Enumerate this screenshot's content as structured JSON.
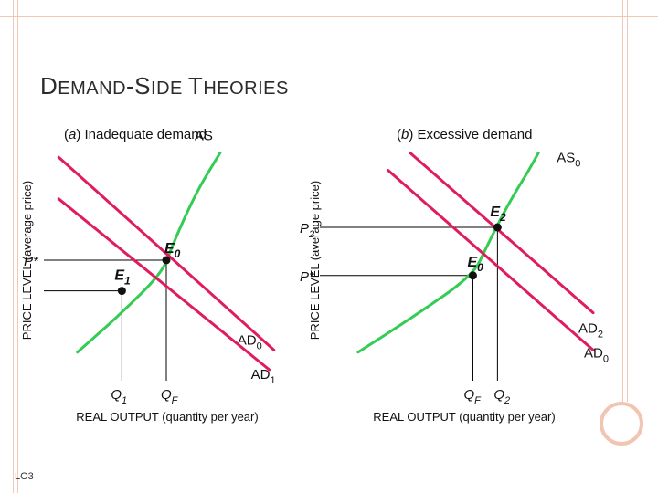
{
  "slide": {
    "title_parts": [
      "D",
      "EMAND",
      "-S",
      "IDE ",
      "T",
      "HEORIES"
    ],
    "footer": "LO3"
  },
  "colors": {
    "supply_curve": "#33cc55",
    "demand_curve": "#e01b5e",
    "guide_lines": "#000000",
    "frame": "#f4c7b4"
  },
  "chart_data": [
    {
      "type": "line",
      "panel_label": "(a)",
      "title": "Inadequate demand",
      "xlabel": "REAL OUTPUT (quantity per year)",
      "ylabel": "PRICE LEVEL (average price)",
      "xlim": [
        0,
        10
      ],
      "ylim": [
        0,
        10
      ],
      "series": [
        {
          "name": "AS",
          "label_main": "AS",
          "label_sub": "",
          "x": [
            1.2,
            3.0,
            4.8,
            5.2,
            5.8,
            6.4,
            6.9,
            7.3
          ],
          "y": [
            0.8,
            2.5,
            4.4,
            5.5,
            7.0,
            8.3,
            9.2,
            9.9
          ]
        },
        {
          "name": "AD0",
          "label_main": "AD",
          "label_sub": "0",
          "x": [
            0.4,
            9.6
          ],
          "y": [
            9.7,
            0.9
          ]
        },
        {
          "name": "AD1",
          "label_main": "AD",
          "label_sub": "1",
          "x": [
            0.4,
            9.4
          ],
          "y": [
            7.8,
            0.0
          ]
        }
      ],
      "points": [
        {
          "name": "E0",
          "label_main": "E",
          "label_sub": "0",
          "x": 5.0,
          "y": 5.0
        },
        {
          "name": "E1",
          "label_main": "E",
          "label_sub": "1",
          "x": 3.1,
          "y": 3.6
        }
      ],
      "y_markers": [
        {
          "label": "P*",
          "value": 5.0
        }
      ],
      "x_markers": [
        {
          "label_main": "Q",
          "label_sub": "1",
          "value": 3.1
        },
        {
          "label_main": "Q",
          "label_sub": "F",
          "value": 5.0
        }
      ]
    },
    {
      "type": "line",
      "panel_label": "(b)",
      "title": "Excessive demand",
      "xlabel": "REAL OUTPUT (quantity per year)",
      "ylabel": "PRICE LEVEL (average price)",
      "xlim": [
        0,
        10
      ],
      "ylim": [
        0,
        10
      ],
      "series": [
        {
          "name": "AS0",
          "label_main": "AS",
          "label_sub": "0",
          "x": [
            1.2,
            3.2,
            5.4,
            5.9,
            6.5,
            7.0,
            7.4,
            7.8
          ],
          "y": [
            0.8,
            2.4,
            4.3,
            5.6,
            7.1,
            8.2,
            9.0,
            9.9
          ]
        },
        {
          "name": "AD0",
          "label_main": "AD",
          "label_sub": "0",
          "x": [
            2.3,
            9.8
          ],
          "y": [
            9.1,
            0.9
          ]
        },
        {
          "name": "AD2",
          "label_main": "AD",
          "label_sub": "2",
          "x": [
            3.1,
            9.8
          ],
          "y": [
            9.9,
            2.6
          ]
        }
      ],
      "points": [
        {
          "name": "E0",
          "label_main": "E",
          "label_sub": "0",
          "x": 5.4,
          "y": 4.3
        },
        {
          "name": "E2",
          "label_main": "E",
          "label_sub": "2",
          "x": 6.3,
          "y": 6.5
        }
      ],
      "y_markers": [
        {
          "label_main": "P",
          "label_sub": "2",
          "value": 6.5
        },
        {
          "label_main": "P*",
          "label_sub": "",
          "value": 4.3
        }
      ],
      "x_markers": [
        {
          "label_main": "Q",
          "label_sub": "F",
          "value": 5.4
        },
        {
          "label_main": "Q",
          "label_sub": "2",
          "value": 6.3
        }
      ]
    }
  ]
}
